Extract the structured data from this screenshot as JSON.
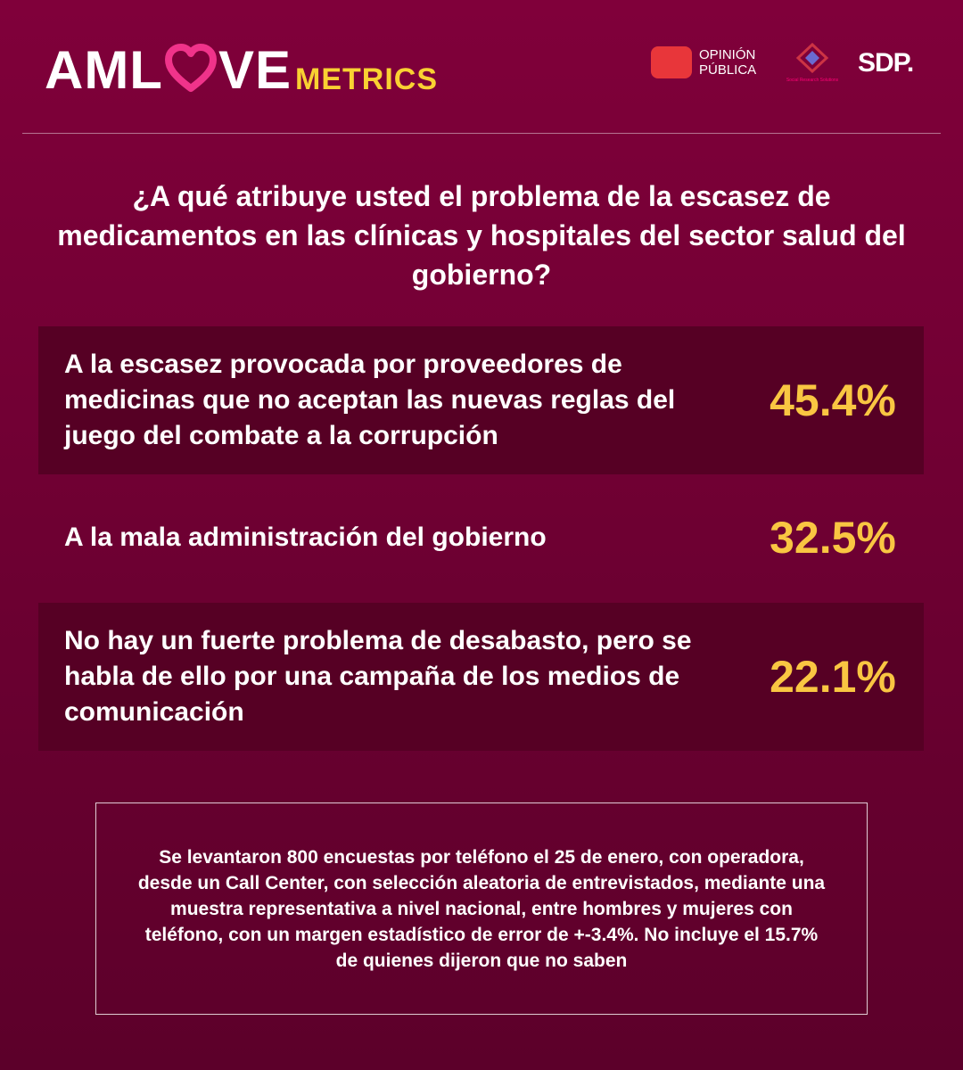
{
  "header": {
    "logo": {
      "left": "AML",
      "right": "VE",
      "suffix": "METRICS"
    },
    "partners": [
      "OPINIÓN",
      "PÚBLICA",
      "Social Research Solutions",
      "SDP."
    ]
  },
  "question": "¿A qué atribuye usted el problema de la escasez de medicamentos en las clínicas y hospitales del sector salud del gobierno?",
  "answers": [
    {
      "label": "A la escasez provocada por proveedores de medicinas que no aceptan las nuevas reglas del juego del combate a la corrupción",
      "value": "45.4%"
    },
    {
      "label": "A la mala administración del gobierno",
      "value": "32.5%"
    },
    {
      "label": "No hay un fuerte problema de desabasto, pero se habla de ello por una campaña de los medios de comunicación",
      "value": "22.1%"
    }
  ],
  "note": "Se levantaron 800 encuestas por teléfono el 25 de enero, con operadora, desde un Call Center, con selección aleatoria de entrevistados, mediante una muestra representativa a nivel nacional, entre hombres y mujeres con teléfono, con un margen estadístico de error de +-3.4%. No incluye el 15.7% de quienes dijeron que no saben"
}
